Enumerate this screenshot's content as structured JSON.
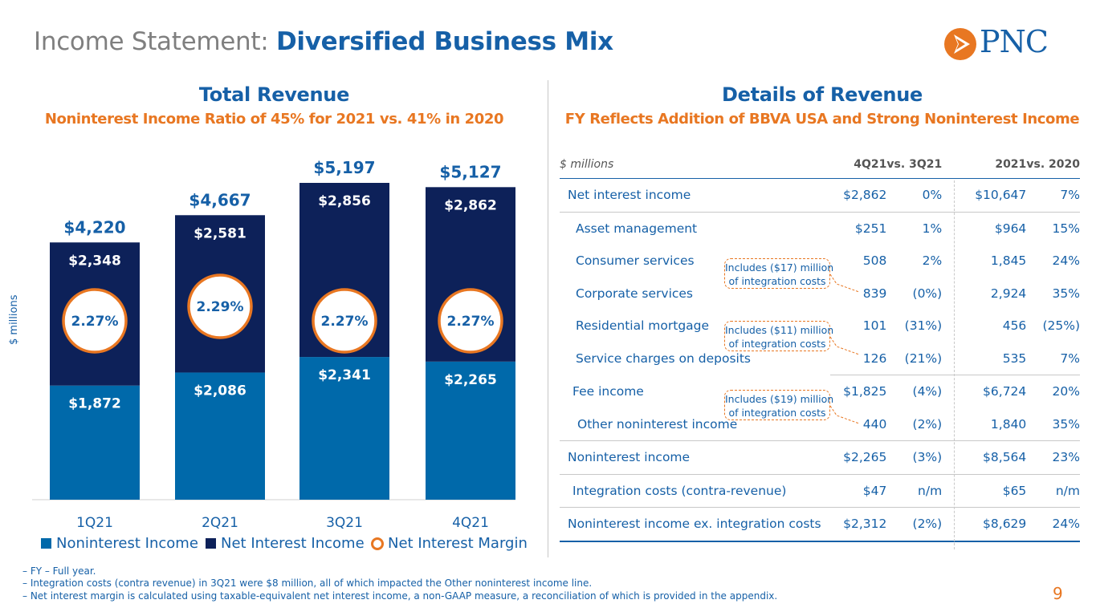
{
  "page": {
    "title_prefix": "Income Statement:",
    "title_emphasis": "Diversified Business Mix",
    "logo_text": "PNC",
    "page_number": "9",
    "colors": {
      "brand_blue": "#1660a7",
      "dark_navy": "#0d2159",
      "mid_blue": "#0069aa",
      "orange": "#e87722"
    }
  },
  "left": {
    "heading": "Total Revenue",
    "subheading": "Noninterest Income Ratio of 45% for 2021 vs. 41% in 2020"
  },
  "chart_data": {
    "type": "bar",
    "stacked": true,
    "categories": [
      "1Q21",
      "2Q21",
      "3Q21",
      "4Q21"
    ],
    "series": [
      {
        "name": "Noninterest Income",
        "values": [
          1872,
          2086,
          2341,
          2265
        ],
        "labels": [
          "$1,872",
          "$2,086",
          "$2,341",
          "$2,265"
        ],
        "color": "#0069aa"
      },
      {
        "name": "Net Interest Income",
        "values": [
          2348,
          2581,
          2856,
          2862
        ],
        "labels": [
          "$2,348",
          "$2,581",
          "$2,856",
          "$2,862"
        ],
        "color": "#0d2159"
      }
    ],
    "totals": [
      "$4,220",
      "$4,667",
      "$5,197",
      "$5,127"
    ],
    "net_interest_margin": {
      "name": "Net Interest Margin",
      "values": [
        "2.27%",
        "2.29%",
        "2.27%",
        "2.27%"
      ]
    },
    "ylabel": "$ millions",
    "ylim": [
      0,
      5197
    ],
    "legend": [
      "Noninterest Income",
      "Net Interest Income",
      "Net Interest Margin"
    ]
  },
  "right": {
    "heading": "Details of Revenue",
    "subheading": "FY Reflects Addition of BBVA USA and Strong Noninterest Income",
    "table": {
      "header": {
        "label": "$ millions",
        "q": "4Q21",
        "vsq": "vs. 3Q21",
        "fy": "2021",
        "vsfy": "vs. 2020"
      },
      "rows": [
        {
          "label": "Net interest income",
          "q": "$2,862",
          "vsq": "0%",
          "fy": "$10,647",
          "vsfy": "7%"
        },
        {
          "label": "Asset management",
          "q": "$251",
          "vsq": "1%",
          "fy": "$964",
          "vsfy": "15%"
        },
        {
          "label": "Consumer services",
          "q": "508",
          "vsq": "2%",
          "fy": "1,845",
          "vsfy": "24%"
        },
        {
          "label": "Corporate services",
          "q": "839",
          "vsq": "(0%)",
          "fy": "2,924",
          "vsfy": "35%"
        },
        {
          "label": "Residential mortgage",
          "q": "101",
          "vsq": "(31%)",
          "fy": "456",
          "vsfy": "(25%)"
        },
        {
          "label": "Service charges on deposits",
          "q": "126",
          "vsq": "(21%)",
          "fy": "535",
          "vsfy": "7%"
        },
        {
          "label": "Fee income",
          "q": "$1,825",
          "vsq": "(4%)",
          "fy": "$6,724",
          "vsfy": "20%"
        },
        {
          "label": "Other noninterest income",
          "q": "440",
          "vsq": "(2%)",
          "fy": "1,840",
          "vsfy": "35%"
        },
        {
          "label": "Noninterest income",
          "q": "$2,265",
          "vsq": "(3%)",
          "fy": "$8,564",
          "vsfy": "23%"
        },
        {
          "label": "Integration costs (contra-revenue)",
          "q": "$47",
          "vsq": "n/m",
          "fy": "$65",
          "vsfy": "n/m"
        },
        {
          "label": "Noninterest income ex. integration costs",
          "q": "$2,312",
          "vsq": "(2%)",
          "fy": "$8,629",
          "vsfy": "24%"
        }
      ]
    },
    "callouts": [
      {
        "line1": "Includes ($17) million",
        "line2": "of integration costs"
      },
      {
        "line1": "Includes ($11) million",
        "line2": "of integration costs"
      },
      {
        "line1": "Includes ($19) million",
        "line2": "of integration costs"
      }
    ]
  },
  "footnotes": [
    "–  FY – Full year.",
    "–  Integration costs (contra revenue) in 3Q21 were $8 million, all of which impacted the Other noninterest income line.",
    "–  Net interest margin is calculated using taxable-equivalent net interest income, a non-GAAP measure, a reconciliation of which is provided in the appendix."
  ]
}
